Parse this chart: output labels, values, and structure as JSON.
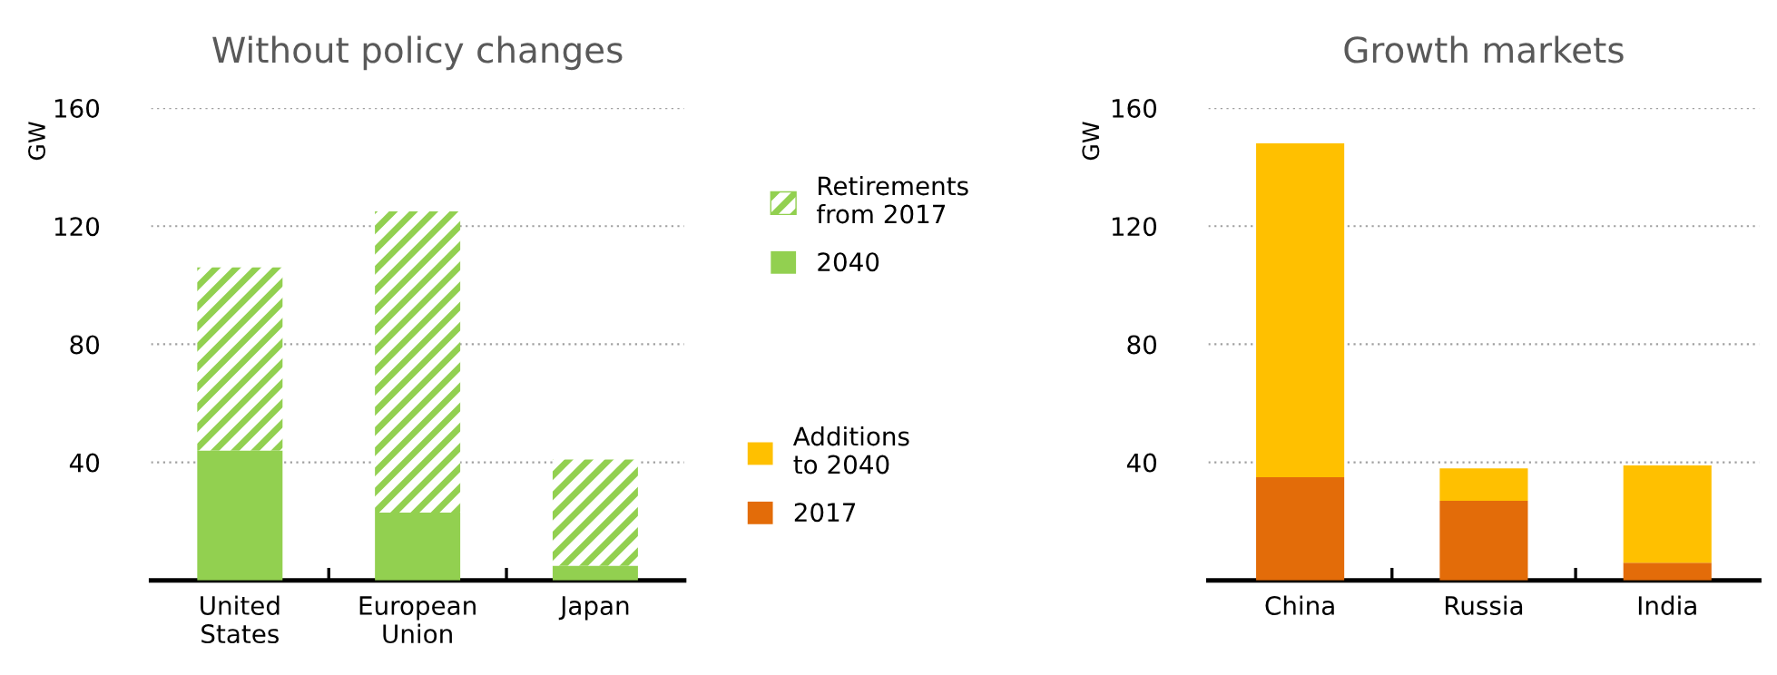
{
  "chart_data": [
    {
      "type": "bar",
      "title": "Without policy changes",
      "ylabel": "GW",
      "categories": [
        "United\nStates",
        "European\nUnion",
        "Japan"
      ],
      "stacked": true,
      "series": [
        {
          "name": "2040",
          "color": "#92d050",
          "values": [
            44,
            23,
            5
          ]
        },
        {
          "name": "Retirements\nfrom 2017",
          "color": "#92d050",
          "values": [
            62,
            102,
            36
          ]
        }
      ],
      "ylim": [
        0,
        160
      ],
      "yticks": [
        40,
        80,
        120,
        160
      ],
      "grid": "y",
      "legend": "right"
    },
    {
      "type": "bar",
      "title": "Growth markets",
      "ylabel": "GW",
      "categories": [
        "China",
        "Russia",
        "India"
      ],
      "stacked": true,
      "series": [
        {
          "name": "2017",
          "color": "#e36c09",
          "values": [
            35,
            27,
            6
          ]
        },
        {
          "name": "Additions\nto 2040",
          "color": "#ffc000",
          "values": [
            113,
            11,
            33
          ]
        }
      ],
      "ylim": [
        0,
        160
      ],
      "yticks": [
        40,
        80,
        120,
        160
      ],
      "grid": "y",
      "legend": "left"
    }
  ]
}
